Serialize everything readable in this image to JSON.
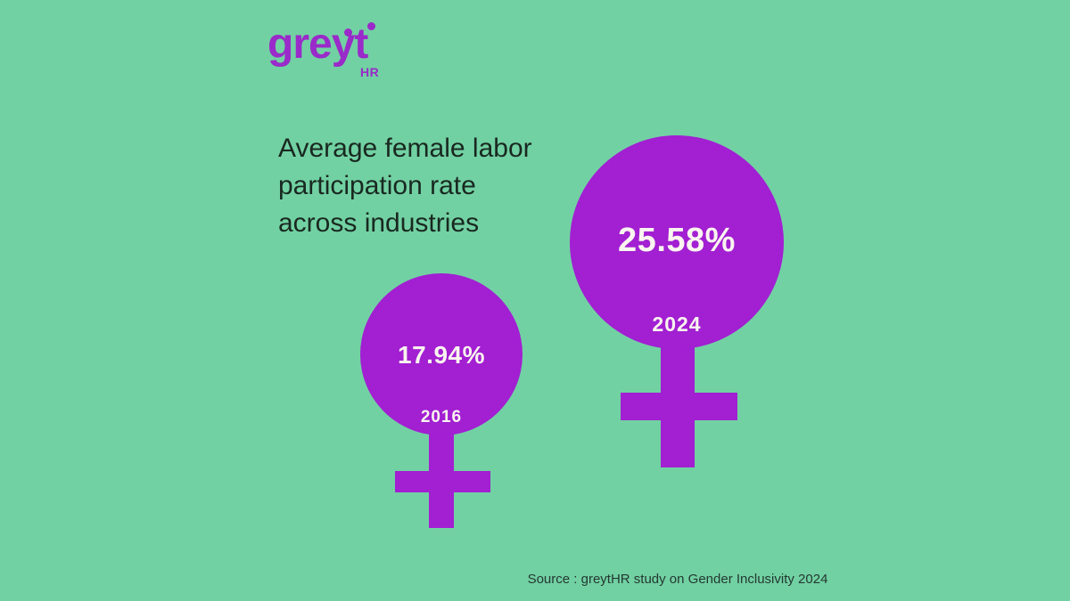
{
  "background_color": "#72d1a3",
  "logo": {
    "text": "greyt",
    "subtext": "HR",
    "color": "#9a2ac9"
  },
  "title": {
    "lines": [
      "Average female labor",
      "participation rate",
      "across industries"
    ]
  },
  "chart_data": {
    "type": "proportional_symbol",
    "title": "Average female labor participation rate across industries",
    "categories": [
      "2016",
      "2024"
    ],
    "values": [
      17.94,
      25.58
    ],
    "unit": "%",
    "value_labels": [
      "17.94%",
      "25.58%"
    ],
    "symbol": "female-gender-symbol",
    "symbol_color": "#a21fd2",
    "label_color": "#f9f4ef",
    "background_color": "#72d1a3",
    "legend_position": "none",
    "grid": false,
    "source": "Source : greytHR study on Gender Inclusivity 2024"
  },
  "source": {
    "text": "Source : greytHR study on Gender Inclusivity 2024"
  }
}
